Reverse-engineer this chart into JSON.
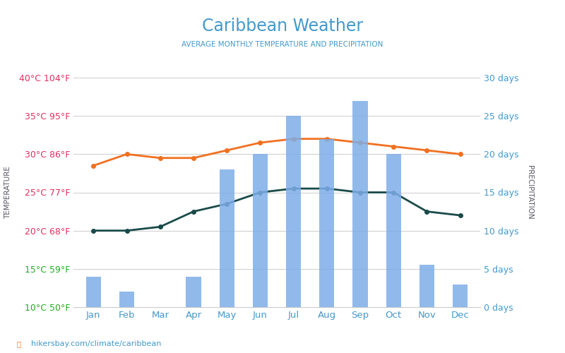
{
  "title": "Caribbean Weather",
  "subtitle": "AVERAGE MONTHLY TEMPERATURE AND PRECIPITATION",
  "months": [
    "Jan",
    "Feb",
    "Mar",
    "Apr",
    "May",
    "Jun",
    "Jul",
    "Aug",
    "Sep",
    "Oct",
    "Nov",
    "Dec"
  ],
  "day_temp": [
    28.5,
    30.0,
    29.5,
    29.5,
    30.5,
    31.5,
    32.0,
    32.0,
    31.5,
    31.0,
    30.5,
    30.0
  ],
  "night_temp": [
    20.0,
    20.0,
    20.5,
    22.5,
    23.5,
    25.0,
    25.5,
    25.5,
    25.0,
    25.0,
    22.5,
    22.0
  ],
  "rain_days": [
    4.0,
    2.0,
    0.0,
    4.0,
    18.0,
    20.0,
    25.0,
    22.0,
    27.0,
    20.0,
    5.5,
    3.0
  ],
  "snow_days": [
    0,
    0,
    0,
    0,
    0,
    0,
    0,
    0,
    0,
    0,
    0,
    0
  ],
  "temp_ylim": [
    10,
    40
  ],
  "temp_yticks": [
    10,
    15,
    20,
    25,
    30,
    35,
    40
  ],
  "temp_ytick_labels_c": [
    "10°C",
    "15°C",
    "20°C",
    "25°C",
    "30°C",
    "35°C",
    "40°C"
  ],
  "temp_ytick_labels_f": [
    "50°F",
    "59°F",
    "68°F",
    "77°F",
    "86°F",
    "95°F",
    "104°F"
  ],
  "tick_colors": [
    "#22aa22",
    "#22aa22",
    "#e03060",
    "#e03060",
    "#e03060",
    "#e03060",
    "#e03060"
  ],
  "precip_ylim": [
    0,
    30
  ],
  "precip_yticks": [
    0,
    5,
    10,
    15,
    20,
    25,
    30
  ],
  "precip_ytick_labels": [
    "0 days",
    "5 days",
    "10 days",
    "15 days",
    "20 days",
    "25 days",
    "30 days"
  ],
  "bar_color": "#7eaee8",
  "day_color": "#f07020",
  "night_color": "#1a4a4a",
  "title_color": "#4499cc",
  "subtitle_color": "#4499cc",
  "right_label_color": "#4499cc",
  "xlabel_color": "#4499cc",
  "watermark": "hikersbay.com/climate/caribbean",
  "watermark_color": "#4499cc",
  "temp_ylabel_color": "#555566",
  "precip_ylabel_color": "#555566"
}
